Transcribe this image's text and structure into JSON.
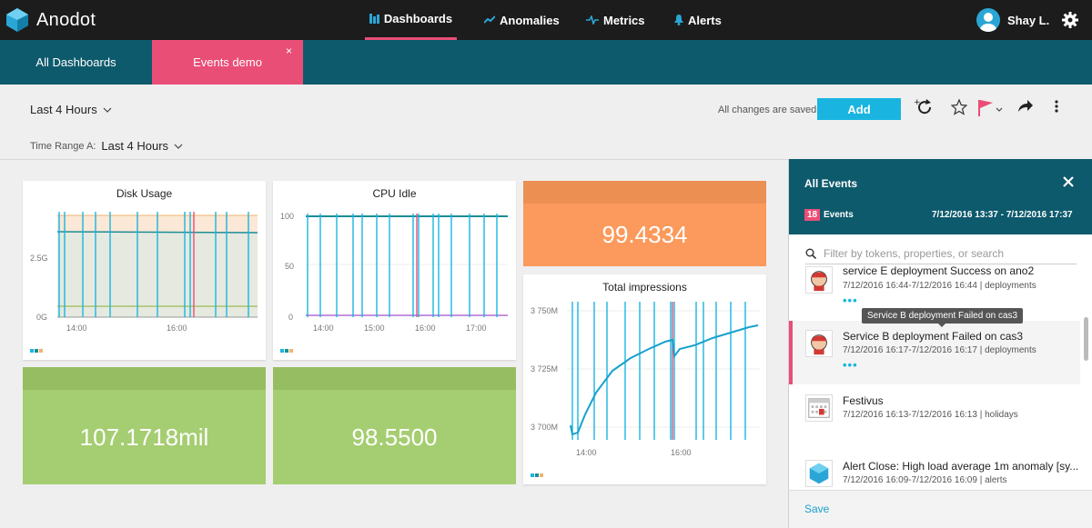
{
  "app": {
    "name": "Anodot"
  },
  "nav": {
    "items": [
      {
        "label": "Dashboards",
        "icon": "dashboards-icon",
        "active": true
      },
      {
        "label": "Anomalies",
        "icon": "anomalies-icon"
      },
      {
        "label": "Metrics",
        "icon": "metrics-icon"
      },
      {
        "label": "Alerts",
        "icon": "bell-icon"
      }
    ],
    "user": "Shay L."
  },
  "tabs": [
    {
      "label": "All Dashboards"
    },
    {
      "label": "Events demo",
      "active": true,
      "close": "×"
    }
  ],
  "toolbar": {
    "time_range": "Last 4 Hours",
    "time_range_a_label": "Time Range A:",
    "time_range_a": "Last 4 Hours",
    "saved_status": "All changes are saved",
    "add_label": "Add"
  },
  "widgets": {
    "disk": {
      "title": "Disk Usage",
      "y_ticks": [
        "2.5G",
        "0G"
      ],
      "x_ticks": [
        "14:00",
        "16:00"
      ]
    },
    "cpu": {
      "title": "CPU Idle",
      "y_ticks": [
        "100",
        "50",
        "0"
      ],
      "x_ticks": [
        "14:00",
        "15:00",
        "16:00",
        "17:00"
      ]
    },
    "stat_orange": {
      "value": "99.4334"
    },
    "impressions": {
      "title": "Total impressions",
      "y_ticks": [
        "3 750M",
        "3 725M",
        "3 700M"
      ],
      "x_ticks": [
        "14:00",
        "16:00"
      ]
    },
    "stat_green_1": {
      "value": "107.1718mil"
    },
    "stat_green_2": {
      "value": "98.5500"
    }
  },
  "colors": {
    "orange": "#fb9a5c",
    "orange_head": "#ec8f53",
    "green": "#a5cd71",
    "green_head": "#96bd61",
    "accent": "#e94e77",
    "teal": "#0e5a6d",
    "line": "#19b5e0"
  },
  "events_panel": {
    "title": "All Events",
    "count": "18",
    "count_label": "Events",
    "range": "7/12/2016 13:37 - 7/12/2016 17:37",
    "search_placeholder": "Filter by tokens, properties, or search",
    "tooltip": "Service B deployment Failed on cas3",
    "events": [
      {
        "title": "service E deployment Success on ano2",
        "meta": "7/12/2016 16:44-7/12/2016 16:44 | deployments",
        "more": "•••",
        "icon": "jenkins-icon"
      },
      {
        "title": "Service B deployment Failed on cas3",
        "meta": "7/12/2016 16:17-7/12/2016 16:17 | deployments",
        "more": "•••",
        "icon": "jenkins-icon",
        "active": true
      },
      {
        "title": "Festivus",
        "meta": "7/12/2016 16:13-7/12/2016 16:13 | holidays",
        "icon": "calendar-icon"
      },
      {
        "title": "Alert Close: High load average 1m anomaly [sy...",
        "meta": "7/12/2016 16:09-7/12/2016 16:09 | alerts",
        "icon": "anodot-icon"
      }
    ],
    "save_label": "Save"
  }
}
